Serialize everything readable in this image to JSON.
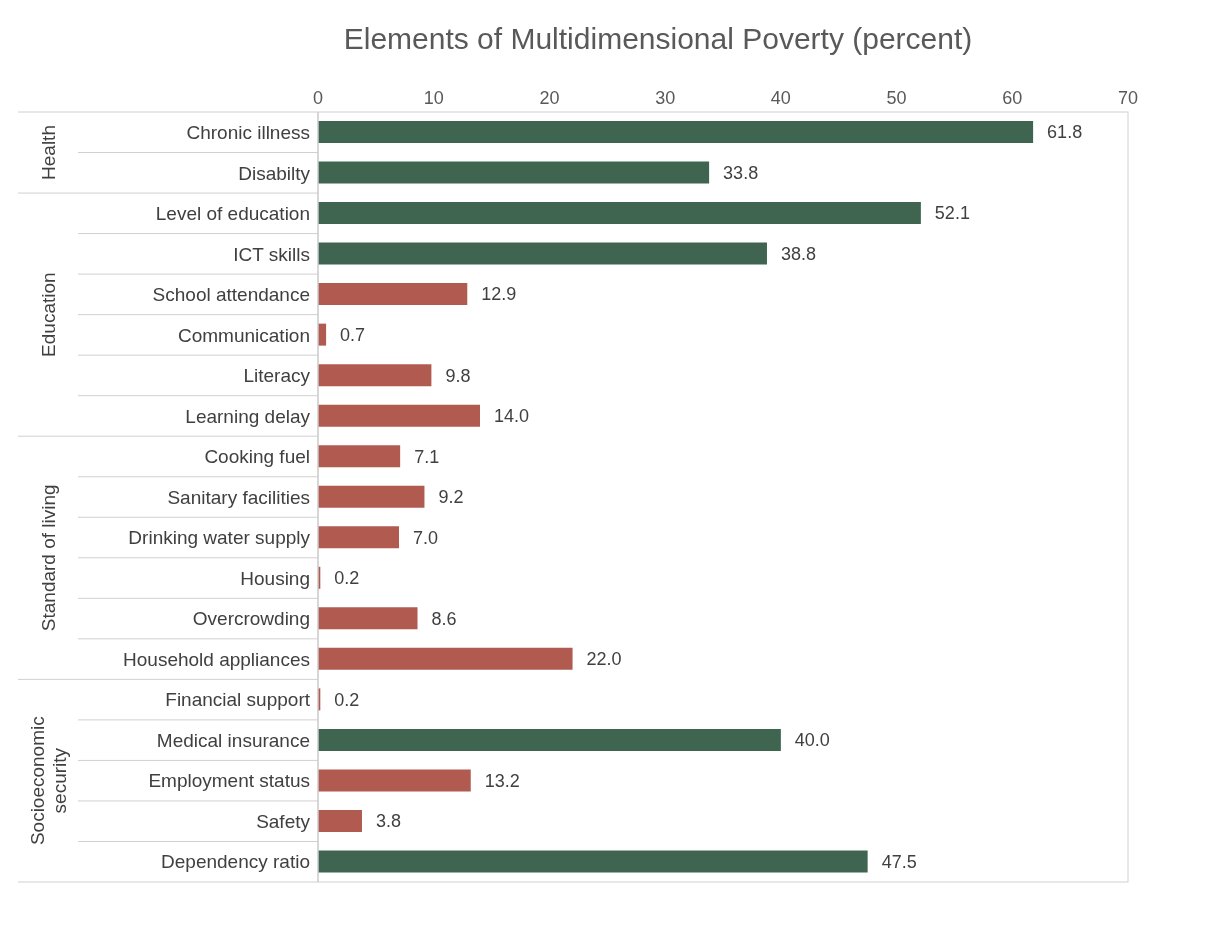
{
  "chart_data": {
    "type": "bar",
    "orientation": "horizontal",
    "title": "Elements of Multidimensional Poverty (percent)",
    "categories": [
      "Chronic illness",
      "Disabilty",
      "Level of education",
      "ICT skills",
      "School attendance",
      "Communication",
      "Literacy",
      "Learning delay",
      "Cooking fuel",
      "Sanitary facilities",
      "Drinking water supply",
      "Housing",
      "Overcrowding",
      "Household appliances",
      "Financial support",
      "Medical insurance",
      "Employment status",
      "Safety",
      "Dependency ratio"
    ],
    "values": [
      61.8,
      33.8,
      52.1,
      38.8,
      12.9,
      0.7,
      9.8,
      14.0,
      7.1,
      9.2,
      7.0,
      0.2,
      8.6,
      22.0,
      0.2,
      40.0,
      13.2,
      3.8,
      47.5
    ],
    "value_labels": [
      "61.8",
      "33.8",
      "52.1",
      "38.8",
      "12.9",
      "0.7",
      "9.8",
      "14.0",
      "7.1",
      "9.2",
      "7.0",
      "0.2",
      "8.6",
      "22.0",
      "0.2",
      "40.0",
      "13.2",
      "3.8",
      "47.5"
    ],
    "colors": [
      "#3f6450",
      "#3f6450",
      "#3f6450",
      "#3f6450",
      "#b05a50",
      "#b05a50",
      "#b05a50",
      "#b05a50",
      "#b05a50",
      "#b05a50",
      "#b05a50",
      "#b05a50",
      "#b05a50",
      "#b05a50",
      "#b05a50",
      "#3f6450",
      "#b05a50",
      "#b05a50",
      "#3f6450"
    ],
    "xlim": [
      0,
      70
    ],
    "xticks": [
      0,
      10,
      20,
      30,
      40,
      50,
      60,
      70
    ],
    "grid": false,
    "legend": false,
    "annotations": [
      "Health",
      "Education",
      "Standard of living",
      "Socioeconomic security"
    ]
  }
}
